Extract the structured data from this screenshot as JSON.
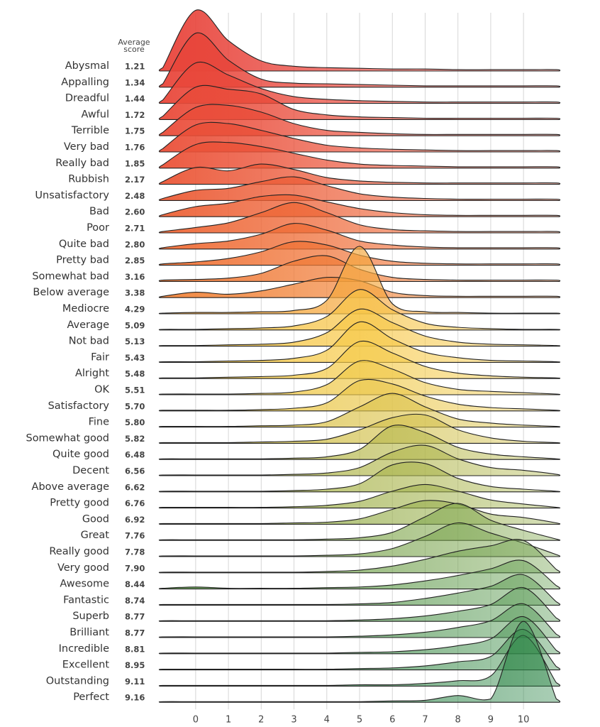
{
  "chart_data": {
    "type": "ridgeline",
    "average_score_header": "Average score",
    "xlim": [
      -1.1,
      11.1
    ],
    "xticks": [
      0,
      1,
      2,
      3,
      4,
      5,
      6,
      7,
      8,
      9,
      10
    ],
    "grid": true,
    "x": [
      -1,
      0,
      1,
      2,
      3,
      4,
      5,
      6,
      7,
      8,
      9,
      10,
      11
    ],
    "series": [
      {
        "name": "Abysmal",
        "average": "1.21",
        "color": "#e8433a",
        "values": [
          0.05,
          0.9,
          0.45,
          0.15,
          0.07,
          0.05,
          0.04,
          0.03,
          0.03,
          0.02,
          0.02,
          0.02,
          0.02
        ]
      },
      {
        "name": "Appalling",
        "average": "1.34",
        "color": "#e8453a",
        "values": [
          0.05,
          0.8,
          0.4,
          0.12,
          0.06,
          0.05,
          0.04,
          0.03,
          0.02,
          0.02,
          0.02,
          0.02,
          0.02
        ]
      },
      {
        "name": "Dreadful",
        "average": "1.44",
        "color": "#e9473a",
        "values": [
          0.05,
          0.6,
          0.42,
          0.22,
          0.1,
          0.06,
          0.04,
          0.03,
          0.02,
          0.02,
          0.02,
          0.02,
          0.02
        ]
      },
      {
        "name": "Awful",
        "average": "1.72",
        "color": "#e94a39",
        "values": [
          0.05,
          0.48,
          0.45,
          0.38,
          0.15,
          0.07,
          0.04,
          0.03,
          0.02,
          0.02,
          0.02,
          0.02,
          0.02
        ]
      },
      {
        "name": "Terrible",
        "average": "1.75",
        "color": "#ea4c39",
        "values": [
          0.05,
          0.42,
          0.45,
          0.35,
          0.18,
          0.08,
          0.05,
          0.03,
          0.02,
          0.02,
          0.02,
          0.02,
          0.02
        ]
      },
      {
        "name": "Very bad",
        "average": "1.76",
        "color": "#ea4f38",
        "values": [
          0.05,
          0.4,
          0.42,
          0.32,
          0.2,
          0.1,
          0.06,
          0.04,
          0.03,
          0.02,
          0.02,
          0.02,
          0.02
        ]
      },
      {
        "name": "Really bad",
        "average": "1.85",
        "color": "#eb5238",
        "values": [
          0.05,
          0.35,
          0.38,
          0.32,
          0.22,
          0.12,
          0.06,
          0.04,
          0.03,
          0.02,
          0.02,
          0.02,
          0.02
        ]
      },
      {
        "name": "Rubbish",
        "average": "2.17",
        "color": "#eb5737",
        "values": [
          0.04,
          0.25,
          0.2,
          0.3,
          0.22,
          0.1,
          0.05,
          0.03,
          0.02,
          0.02,
          0.02,
          0.02,
          0.02
        ]
      },
      {
        "name": "Unsatisfactory",
        "average": "2.48",
        "color": "#ec5c36",
        "values": [
          0.03,
          0.15,
          0.18,
          0.28,
          0.35,
          0.22,
          0.1,
          0.05,
          0.03,
          0.02,
          0.02,
          0.02,
          0.02
        ]
      },
      {
        "name": "Bad",
        "average": "2.60",
        "color": "#ed6136",
        "values": [
          0.03,
          0.15,
          0.2,
          0.3,
          0.32,
          0.22,
          0.12,
          0.06,
          0.03,
          0.02,
          0.02,
          0.02,
          0.02
        ]
      },
      {
        "name": "Poor",
        "average": "2.71",
        "color": "#ee6635",
        "values": [
          0.02,
          0.08,
          0.15,
          0.3,
          0.45,
          0.3,
          0.12,
          0.05,
          0.03,
          0.02,
          0.02,
          0.02,
          0.02
        ]
      },
      {
        "name": "Quite bad",
        "average": "2.80",
        "color": "#ef6c35",
        "values": [
          0.02,
          0.08,
          0.12,
          0.22,
          0.38,
          0.28,
          0.12,
          0.06,
          0.03,
          0.02,
          0.02,
          0.02,
          0.02
        ]
      },
      {
        "name": "Pretty bad",
        "average": "2.85",
        "color": "#f07235",
        "values": [
          0.02,
          0.05,
          0.1,
          0.2,
          0.35,
          0.3,
          0.15,
          0.06,
          0.03,
          0.02,
          0.02,
          0.02,
          0.02
        ]
      },
      {
        "name": "Somewhat bad",
        "average": "3.16",
        "color": "#f07a36",
        "values": [
          0.02,
          0.03,
          0.05,
          0.12,
          0.3,
          0.38,
          0.18,
          0.06,
          0.03,
          0.02,
          0.02,
          0.02,
          0.02
        ]
      },
      {
        "name": "Below average",
        "average": "3.38",
        "color": "#f18338",
        "values": [
          0.02,
          0.08,
          0.05,
          0.1,
          0.2,
          0.3,
          0.25,
          0.08,
          0.03,
          0.02,
          0.02,
          0.02,
          0.02
        ]
      },
      {
        "name": "Mediocre",
        "average": "4.29",
        "color": "#f5a73c",
        "values": [
          0.01,
          0.02,
          0.02,
          0.03,
          0.05,
          0.2,
          1.0,
          0.15,
          0.03,
          0.02,
          0.01,
          0.01,
          0.01
        ]
      },
      {
        "name": "Average",
        "average": "5.09",
        "color": "#f7c445",
        "values": [
          0.01,
          0.01,
          0.02,
          0.03,
          0.06,
          0.2,
          0.6,
          0.3,
          0.1,
          0.04,
          0.02,
          0.01,
          0.01
        ]
      },
      {
        "name": "Not bad",
        "average": "5.13",
        "color": "#f7c746",
        "values": [
          0.01,
          0.01,
          0.02,
          0.03,
          0.06,
          0.2,
          0.55,
          0.35,
          0.15,
          0.06,
          0.03,
          0.02,
          0.01
        ]
      },
      {
        "name": "Fair",
        "average": "5.43",
        "color": "#f6c947",
        "values": [
          0.01,
          0.01,
          0.02,
          0.03,
          0.06,
          0.18,
          0.6,
          0.35,
          0.15,
          0.07,
          0.03,
          0.02,
          0.01
        ]
      },
      {
        "name": "Alright",
        "average": "5.48",
        "color": "#f4ca48",
        "values": [
          0.01,
          0.01,
          0.02,
          0.03,
          0.05,
          0.15,
          0.55,
          0.38,
          0.18,
          0.08,
          0.04,
          0.02,
          0.01
        ]
      },
      {
        "name": "OK",
        "average": "5.51",
        "color": "#f0c949",
        "values": [
          0.01,
          0.01,
          0.01,
          0.02,
          0.04,
          0.15,
          0.5,
          0.38,
          0.18,
          0.08,
          0.05,
          0.03,
          0.01
        ]
      },
      {
        "name": "Satisfactory",
        "average": "5.70",
        "color": "#eac74a",
        "values": [
          0.01,
          0.01,
          0.01,
          0.02,
          0.04,
          0.12,
          0.45,
          0.4,
          0.22,
          0.1,
          0.05,
          0.03,
          0.01
        ]
      },
      {
        "name": "Fine",
        "average": "5.80",
        "color": "#dcc34b",
        "values": [
          0.01,
          0.01,
          0.01,
          0.02,
          0.03,
          0.08,
          0.3,
          0.5,
          0.3,
          0.12,
          0.06,
          0.03,
          0.01
        ]
      },
      {
        "name": "Somewhat good",
        "average": "5.82",
        "color": "#d2c04b",
        "values": [
          0.01,
          0.01,
          0.01,
          0.02,
          0.03,
          0.06,
          0.2,
          0.38,
          0.42,
          0.2,
          0.08,
          0.03,
          0.01
        ]
      },
      {
        "name": "Quite good",
        "average": "6.48",
        "color": "#b7b84b",
        "values": [
          0.01,
          0.01,
          0.01,
          0.01,
          0.02,
          0.04,
          0.15,
          0.5,
          0.4,
          0.18,
          0.08,
          0.04,
          0.01
        ]
      },
      {
        "name": "Decent",
        "average": "6.56",
        "color": "#b0b64b",
        "values": [
          0.01,
          0.01,
          0.01,
          0.01,
          0.02,
          0.04,
          0.12,
          0.35,
          0.45,
          0.25,
          0.12,
          0.08,
          0.02
        ]
      },
      {
        "name": "Above average",
        "average": "6.62",
        "color": "#a9b44b",
        "values": [
          0.01,
          0.01,
          0.01,
          0.01,
          0.02,
          0.04,
          0.12,
          0.4,
          0.42,
          0.2,
          0.08,
          0.04,
          0.01
        ]
      },
      {
        "name": "Pretty good",
        "average": "6.76",
        "color": "#a0b14b",
        "values": [
          0.01,
          0.01,
          0.01,
          0.01,
          0.02,
          0.04,
          0.1,
          0.25,
          0.35,
          0.25,
          0.12,
          0.06,
          0.01
        ]
      },
      {
        "name": "Good",
        "average": "6.92",
        "color": "#97ae4b",
        "values": [
          0.01,
          0.01,
          0.01,
          0.01,
          0.02,
          0.03,
          0.08,
          0.22,
          0.35,
          0.3,
          0.15,
          0.1,
          0.02
        ]
      },
      {
        "name": "Great",
        "average": "7.76",
        "color": "#7fa64b",
        "values": [
          0.01,
          0.01,
          0.01,
          0.01,
          0.01,
          0.02,
          0.04,
          0.12,
          0.35,
          0.55,
          0.3,
          0.15,
          0.02
        ]
      },
      {
        "name": "Really good",
        "average": "7.78",
        "color": "#78a34b",
        "values": [
          0.01,
          0.01,
          0.01,
          0.01,
          0.01,
          0.02,
          0.04,
          0.12,
          0.3,
          0.5,
          0.35,
          0.2,
          0.03
        ]
      },
      {
        "name": "Very good",
        "average": "7.90",
        "color": "#70a04b",
        "values": [
          0.01,
          0.01,
          0.01,
          0.01,
          0.01,
          0.02,
          0.04,
          0.1,
          0.2,
          0.32,
          0.4,
          0.48,
          0.05
        ]
      },
      {
        "name": "Awesome",
        "average": "8.44",
        "color": "#5f9b4b",
        "values": [
          0.01,
          0.03,
          0.01,
          0.01,
          0.01,
          0.02,
          0.03,
          0.06,
          0.12,
          0.2,
          0.3,
          0.42,
          0.05
        ]
      },
      {
        "name": "Fantastic",
        "average": "8.74",
        "color": "#56974b",
        "values": [
          0.01,
          0.01,
          0.01,
          0.01,
          0.01,
          0.01,
          0.02,
          0.04,
          0.1,
          0.18,
          0.28,
          0.45,
          0.05
        ]
      },
      {
        "name": "Superb",
        "average": "8.77",
        "color": "#4e944b",
        "values": [
          0.01,
          0.01,
          0.01,
          0.01,
          0.01,
          0.01,
          0.02,
          0.04,
          0.08,
          0.15,
          0.25,
          0.5,
          0.05
        ]
      },
      {
        "name": "Brilliant",
        "average": "8.77",
        "color": "#47914a",
        "values": [
          0.01,
          0.01,
          0.01,
          0.01,
          0.01,
          0.01,
          0.02,
          0.04,
          0.08,
          0.15,
          0.25,
          0.5,
          0.05
        ]
      },
      {
        "name": "Incredible",
        "average": "8.81",
        "color": "#3f8e4a",
        "values": [
          0.01,
          0.01,
          0.01,
          0.01,
          0.01,
          0.01,
          0.02,
          0.03,
          0.06,
          0.12,
          0.22,
          0.55,
          0.05
        ]
      },
      {
        "name": "Excellent",
        "average": "8.95",
        "color": "#388b49",
        "values": [
          0.01,
          0.01,
          0.01,
          0.01,
          0.01,
          0.01,
          0.02,
          0.03,
          0.06,
          0.12,
          0.2,
          0.6,
          0.05
        ]
      },
      {
        "name": "Outstanding",
        "average": "9.11",
        "color": "#318848",
        "values": [
          0.01,
          0.01,
          0.01,
          0.01,
          0.01,
          0.01,
          0.02,
          0.02,
          0.04,
          0.08,
          0.15,
          0.75,
          0.05
        ]
      },
      {
        "name": "Perfect",
        "average": "9.16",
        "color": "#2b8547",
        "values": [
          0.01,
          0.01,
          0.01,
          0.01,
          0.01,
          0.01,
          0.01,
          0.02,
          0.03,
          0.1,
          0.05,
          1.2,
          0.05
        ]
      }
    ]
  }
}
